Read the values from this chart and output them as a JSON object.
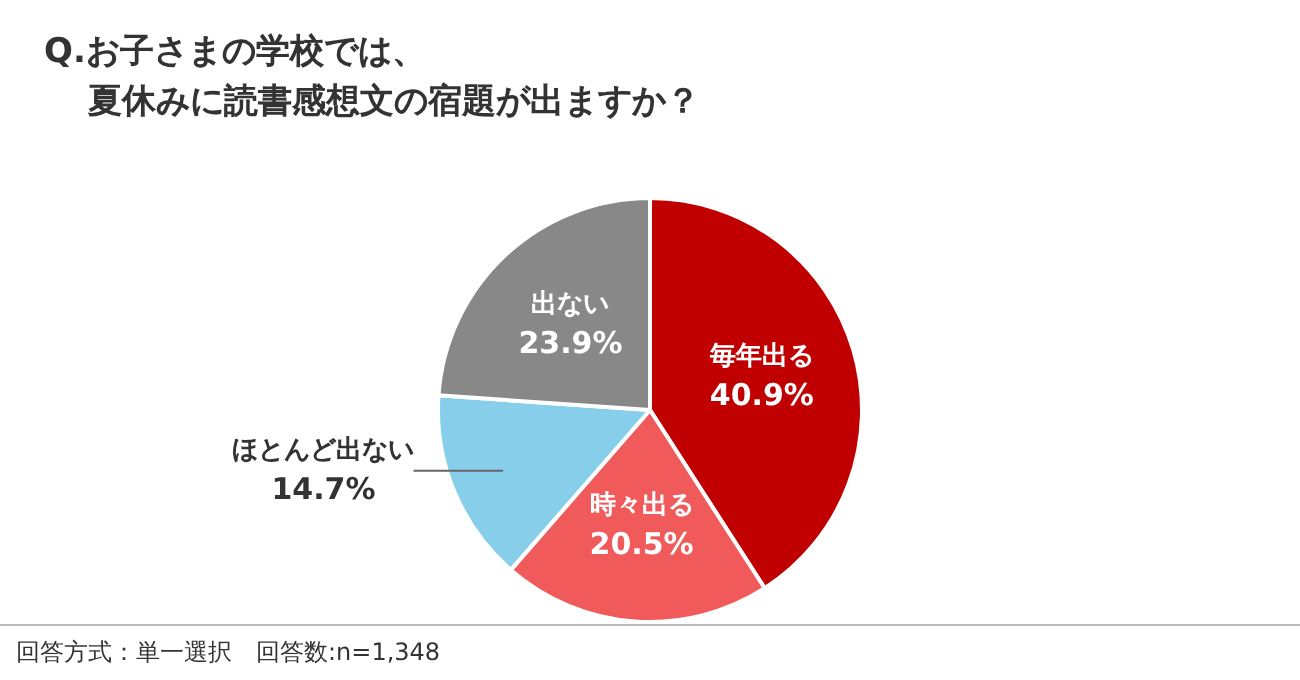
{
  "chart_data": {
    "type": "pie",
    "title": "Q.お子さまの学校では、夏休みに読書感想文の宿題が出ますか？",
    "categories": [
      "毎年出る",
      "時々出る",
      "ほとんど出ない",
      "出ない"
    ],
    "values": [
      40.9,
      20.5,
      14.7,
      23.9
    ],
    "value_labels": [
      "40.9%",
      "20.5%",
      "14.7%",
      "23.9%"
    ],
    "colors": [
      "#c00000",
      "#f05a5a",
      "#87ceeb",
      "#888888"
    ],
    "legend": false,
    "annotations": [
      "回答方式：単一選択　回答数:n=1,348"
    ]
  }
}
